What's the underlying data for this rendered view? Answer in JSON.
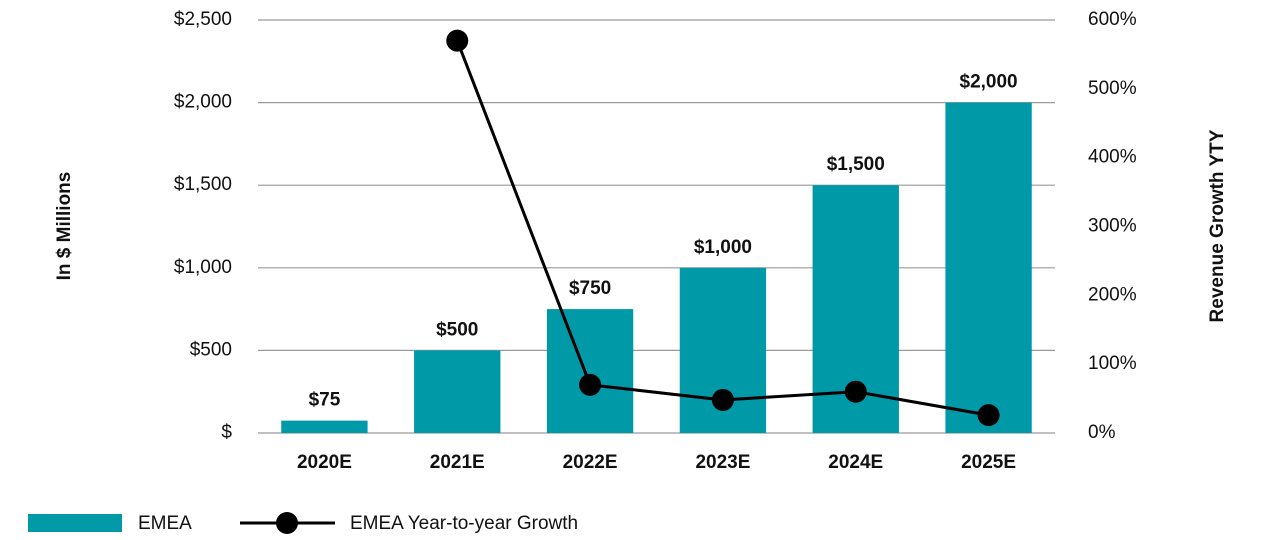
{
  "chart_data": {
    "type": "bar_line",
    "categories": [
      "2020E",
      "2021E",
      "2022E",
      "2023E",
      "2024E",
      "2025E"
    ],
    "series": [
      {
        "name": "EMEA",
        "color": "#0099a8",
        "type": "bar",
        "values": [
          75,
          500,
          750,
          1000,
          1500,
          2000
        ],
        "value_labels": [
          "$75",
          "$500",
          "$750",
          "$1,000",
          "$1,500",
          "$2,000"
        ]
      },
      {
        "name": "EMEA Year-to-year Growth",
        "color": "#000000",
        "type": "line",
        "axis": "y2",
        "values": [
          null,
          570,
          70,
          48,
          60,
          26
        ]
      }
    ],
    "ylabel": "In $ Millions",
    "y2label": "Revenue Growth YTY",
    "ylim": [
      0,
      2500
    ],
    "yticks": [
      {
        "value": 0,
        "label": "$"
      },
      {
        "value": 500,
        "label": "$500"
      },
      {
        "value": 1000,
        "label": "$1,000"
      },
      {
        "value": 1500,
        "label": "$1,500"
      },
      {
        "value": 2000,
        "label": "$2,000"
      },
      {
        "value": 2500,
        "label": "$2,500"
      }
    ],
    "y2lim": [
      0,
      600
    ],
    "y2ticks": [
      {
        "value": 0,
        "label": "0%"
      },
      {
        "value": 100,
        "label": "100%"
      },
      {
        "value": 200,
        "label": "200%"
      },
      {
        "value": 300,
        "label": "300%"
      },
      {
        "value": 400,
        "label": "400%"
      },
      {
        "value": 500,
        "label": "500%"
      },
      {
        "value": 600,
        "label": "600%"
      }
    ],
    "grid": true,
    "legend": "bottom-left"
  }
}
